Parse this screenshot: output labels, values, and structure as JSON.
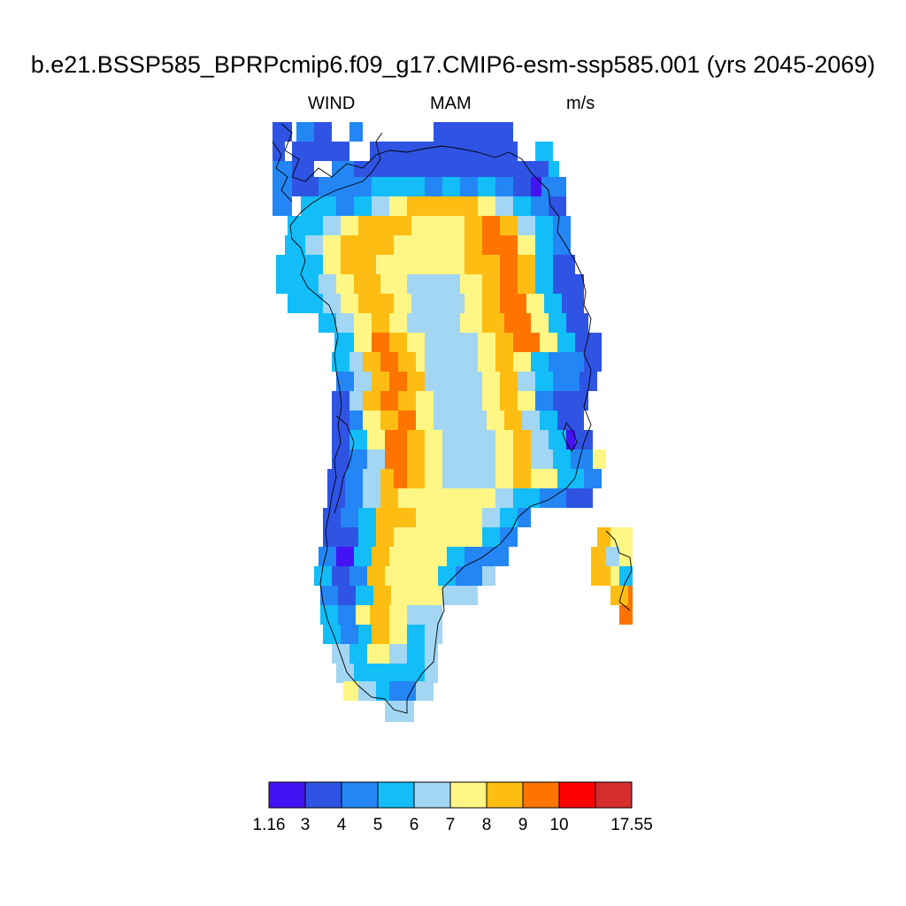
{
  "title": "b.e21.BSSP585_BPRPcmip6.f09_g17.CMIP6-esm-ssp585.001 (yrs 2045-2069)",
  "left_label": "WIND",
  "center_label": "MAM",
  "right_label": "m/s",
  "colorbar": {
    "colors": [
      "#4313f4",
      "#2f54e4",
      "#2386f4",
      "#12bdf8",
      "#a3d6f3",
      "#fff685",
      "#fdbd12",
      "#fe7400",
      "#ff0000",
      "#d62c2c"
    ],
    "tick_labels": [
      "1.16",
      "3",
      "4",
      "5",
      "6",
      "7",
      "8",
      "9",
      "10",
      "17.55"
    ],
    "min": 1.16,
    "max": 17.55
  },
  "map_data": {
    "variable": "WIND",
    "season": "MAM",
    "units": "m/s",
    "region": "Greenland"
  }
}
